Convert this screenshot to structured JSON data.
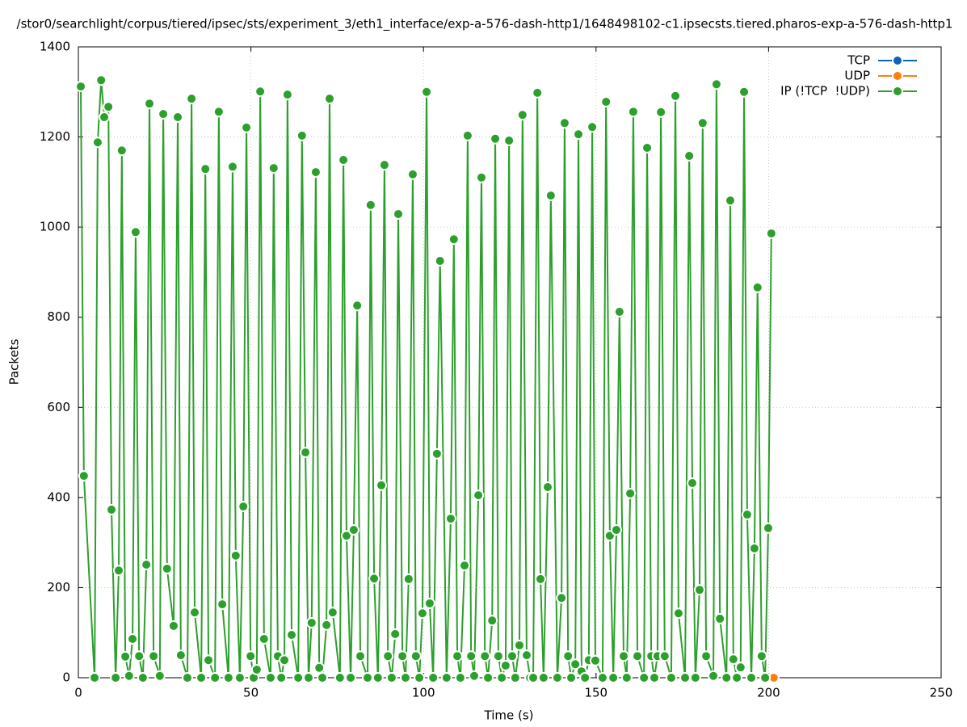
{
  "chart_data": {
    "type": "line",
    "title": "/stor0/searchlight/corpus/tiered/ipsec/sts/experiment_3/eth1_interface/exp-a-576-dash-http1/1648498102-c1.ipsecsts.tiered.pharos-exp-a-576-dash-http1",
    "xlabel": "Time (s)",
    "ylabel": "Packets",
    "xlim": [
      0,
      250
    ],
    "xticks": [
      0,
      50,
      100,
      150,
      200,
      250
    ],
    "ylim": [
      0,
      1400
    ],
    "yticks": [
      0,
      200,
      400,
      600,
      800,
      1000,
      1200,
      1400
    ],
    "grid": true,
    "legend": "top right",
    "series": [
      {
        "name": "TCP",
        "color": "#0b64b4",
        "x": [
          201.5
        ],
        "values": [
          0
        ]
      },
      {
        "name": "UDP",
        "color": "#ff7f0e",
        "x": [
          201.5
        ],
        "values": [
          0
        ]
      },
      {
        "name": "IP (!TCP  !UDP)",
        "color": "#2ca02c",
        "x": [
          0.7,
          1.6,
          4.7,
          5.6,
          6.6,
          7.5,
          8.7,
          9.6,
          10.8,
          11.7,
          12.6,
          13.6,
          14.7,
          15.7,
          16.6,
          17.6,
          18.7,
          19.7,
          20.6,
          21.8,
          23.6,
          24.6,
          25.7,
          27.6,
          28.8,
          29.7,
          31.6,
          32.8,
          33.7,
          35.6,
          36.8,
          37.7,
          39.6,
          40.7,
          41.7,
          43.5,
          44.7,
          45.6,
          46.8,
          47.8,
          48.7,
          49.9,
          50.8,
          51.7,
          52.7,
          53.8,
          55.7,
          56.6,
          57.8,
          58.8,
          59.7,
          60.6,
          61.8,
          63.7,
          64.8,
          65.8,
          66.7,
          67.6,
          68.8,
          69.8,
          70.7,
          71.9,
          72.8,
          73.7,
          75.8,
          76.8,
          77.7,
          78.9,
          79.8,
          80.8,
          81.7,
          83.8,
          84.7,
          85.7,
          86.8,
          87.8,
          88.7,
          89.7,
          90.8,
          91.8,
          92.7,
          93.9,
          94.8,
          95.7,
          96.9,
          97.8,
          98.8,
          99.7,
          100.9,
          101.8,
          102.8,
          103.9,
          104.8,
          106.7,
          107.9,
          108.8,
          109.8,
          110.7,
          111.9,
          112.8,
          113.8,
          114.7,
          115.9,
          116.8,
          117.8,
          118.7,
          119.9,
          120.8,
          121.7,
          122.7,
          123.8,
          124.8,
          125.7,
          126.6,
          127.8,
          128.7,
          129.9,
          130.9,
          131.8,
          133,
          133.9,
          134.8,
          136,
          136.9,
          138.8,
          140,
          140.9,
          141.9,
          142.8,
          144,
          144.9,
          145.8,
          146.8,
          147.9,
          148.9,
          149.8,
          151.9,
          152.9,
          154,
          155,
          155.9,
          156.8,
          158,
          158.9,
          159.9,
          160.8,
          162,
          163.9,
          164.8,
          166,
          166.9,
          167.8,
          168.8,
          169.9,
          171.8,
          173,
          173.9,
          175.8,
          177,
          177.9,
          178.8,
          180,
          180.9,
          181.9,
          184,
          184.9,
          185.9,
          187.8,
          188.9,
          189.8,
          190.8,
          191.9,
          192.9,
          193.8,
          195,
          195.9,
          196.8,
          198,
          199,
          199.9,
          200.8
        ],
        "values": [
          1312,
          448,
          0,
          1188,
          1326,
          1244,
          1267,
          373,
          0,
          238,
          1170,
          47,
          4,
          86,
          989,
          48,
          0,
          251,
          1274,
          48,
          4,
          1251,
          242,
          115,
          1244,
          50,
          0,
          1285,
          145,
          0,
          1129,
          39,
          0,
          1256,
          163,
          0,
          1134,
          271,
          0,
          380,
          1221,
          48,
          0,
          18,
          1301,
          86,
          0,
          1131,
          48,
          0,
          39,
          1294,
          95,
          0,
          1203,
          500,
          0,
          122,
          1122,
          22,
          0,
          117,
          1285,
          145,
          0,
          1149,
          315,
          0,
          328,
          826,
          48,
          0,
          1049,
          220,
          0,
          427,
          1138,
          48,
          0,
          97,
          1029,
          48,
          0,
          219,
          1117,
          48,
          0,
          143,
          1300,
          165,
          0,
          497,
          925,
          0,
          353,
          973,
          48,
          0,
          249,
          1203,
          48,
          4,
          405,
          1110,
          48,
          0,
          127,
          1196,
          48,
          0,
          27,
          1192,
          48,
          0,
          72,
          1249,
          50,
          0,
          0,
          1298,
          219,
          0,
          423,
          1070,
          0,
          177,
          1231,
          48,
          0,
          30,
          1206,
          14,
          0,
          39,
          1222,
          38,
          0,
          1278,
          315,
          0,
          328,
          812,
          48,
          0,
          409,
          1256,
          48,
          0,
          1176,
          48,
          0,
          48,
          1255,
          48,
          0,
          1291,
          143,
          0,
          1158,
          432,
          0,
          195,
          1231,
          48,
          4,
          1317,
          131,
          0,
          1059,
          41,
          0,
          23,
          1300,
          362,
          0,
          287,
          866,
          48,
          0,
          332,
          986
        ]
      }
    ]
  }
}
